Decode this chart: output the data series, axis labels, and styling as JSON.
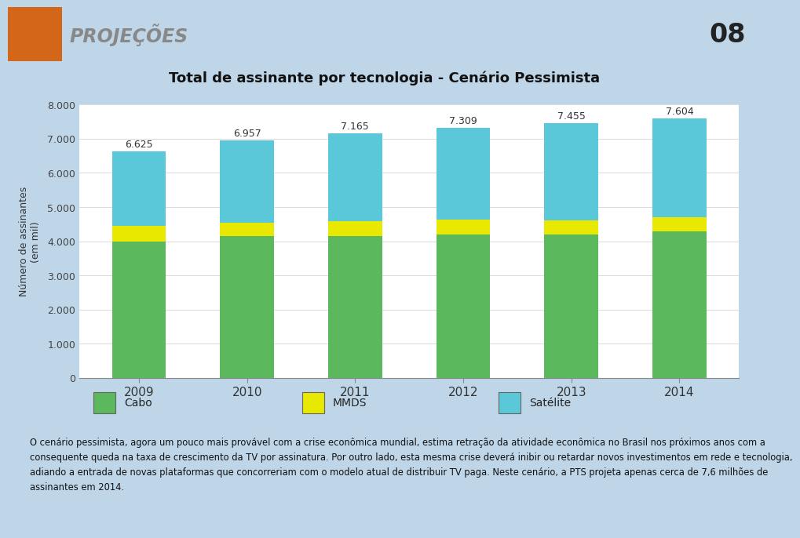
{
  "title": "Total de assinante por tecnologia - Cenário Pessimista",
  "years": [
    "2009",
    "2010",
    "2011",
    "2012",
    "2013",
    "2014"
  ],
  "cabo": [
    4000,
    4150,
    4150,
    4200,
    4200,
    4280
  ],
  "mmds": [
    450,
    380,
    440,
    440,
    410,
    430
  ],
  "satelite": [
    2175,
    2427,
    2575,
    2669,
    2845,
    2894
  ],
  "totals_str": [
    "6.625",
    "6.957",
    "7.165",
    "7.309",
    "7.455",
    "7.604"
  ],
  "cabo_color": "#5cb85c",
  "mmds_color": "#e8e800",
  "satelite_color": "#5bc8d9",
  "ylabel_line1": "Número de assinantes",
  "ylabel_line2": "(em mil)",
  "ylim": [
    0,
    8000
  ],
  "yticks": [
    0,
    1000,
    2000,
    3000,
    4000,
    5000,
    6000,
    7000,
    8000
  ],
  "ytick_labels": [
    "0",
    "1.000",
    "2.000",
    "3.000",
    "4.000",
    "5.000",
    "6.000",
    "7.000",
    "8.000"
  ],
  "chart_bg": "#ffffff",
  "outer_bg": "#bed6e8",
  "chart_panel_bg": "#cddce8",
  "header_bg": "#e0e0e0",
  "title_bar_bg": "#a8cad8",
  "legend_labels": [
    "Cabo",
    "MMDS",
    "Satélite"
  ],
  "body_text_line1": "O cenário pessimista, agora um pouco mais provável com a crise econômica mundial, estima retração da atividade econômica no Brasil nos próximos anos com a",
  "body_text_line2": "consequente queda na taxa de crescimento da TV por assinatura. Por outro lado, esta mesma crise deverá inibir ou retardar novos investimentos em rede e tecnologia,",
  "body_text_line3": "adiando a entrada de novas plataformas que concorreriam com o modelo atual de distribuir TV paga. Neste cenário, a PTS projeta apenas cerca de 7,6 milhões de",
  "body_text_line4": "assinantes em 2014."
}
